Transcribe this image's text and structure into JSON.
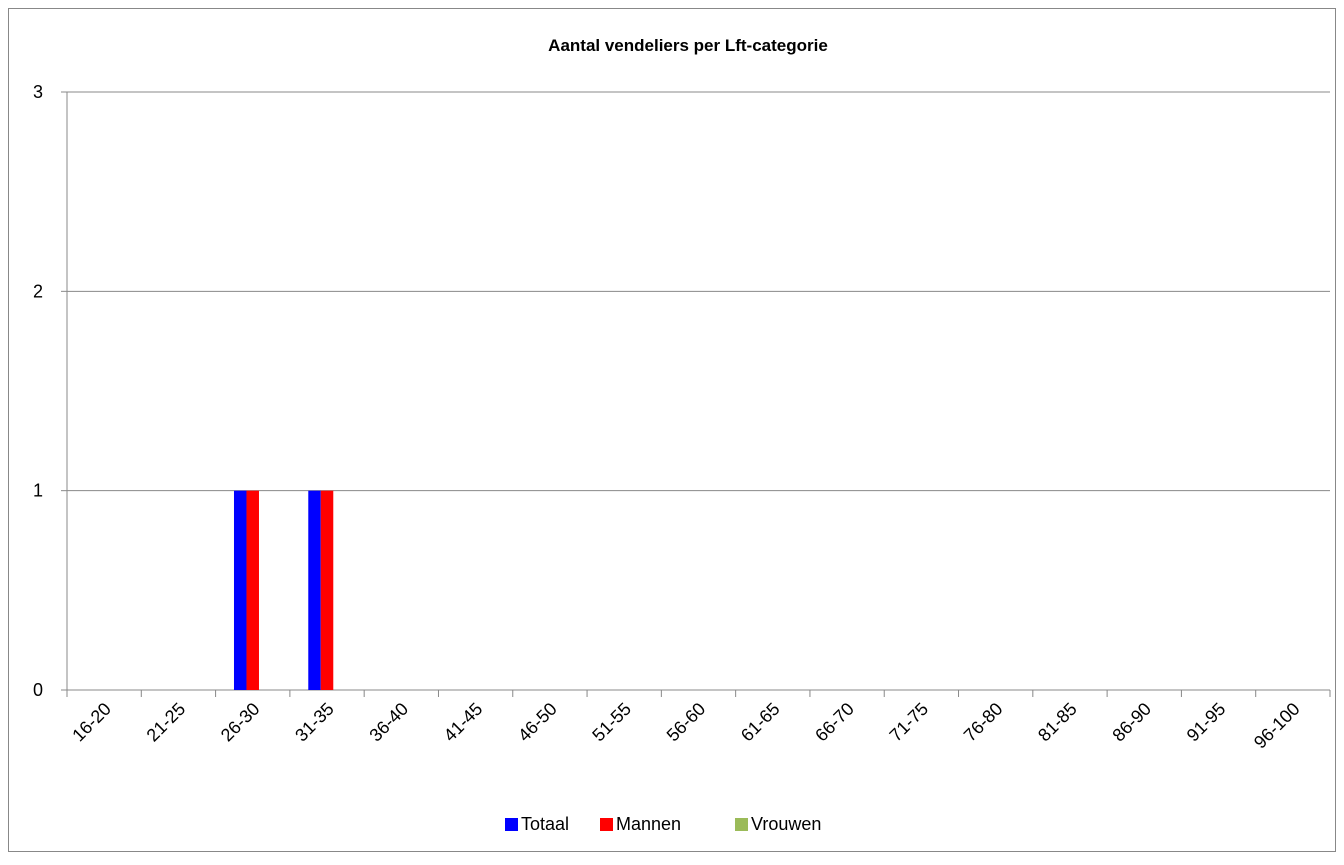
{
  "chart_data": {
    "type": "bar",
    "title": "Aantal vendeliers per Lft-categorie",
    "categories": [
      "16-20",
      "21-25",
      "26-30",
      "31-35",
      "36-40",
      "41-45",
      "46-50",
      "51-55",
      "56-60",
      "61-65",
      "66-70",
      "71-75",
      "76-80",
      "81-85",
      "86-90",
      "91-95",
      "96-100"
    ],
    "series": [
      {
        "name": "Totaal",
        "color": "#0000ff",
        "values": [
          0,
          0,
          1,
          1,
          0,
          0,
          0,
          0,
          0,
          0,
          0,
          0,
          0,
          0,
          0,
          0,
          0
        ]
      },
      {
        "name": "Mannen",
        "color": "#ff0000",
        "values": [
          0,
          0,
          1,
          1,
          0,
          0,
          0,
          0,
          0,
          0,
          0,
          0,
          0,
          0,
          0,
          0,
          0
        ]
      },
      {
        "name": "Vrouwen",
        "color": "#9bbb59",
        "values": [
          0,
          0,
          0,
          0,
          0,
          0,
          0,
          0,
          0,
          0,
          0,
          0,
          0,
          0,
          0,
          0,
          0
        ]
      }
    ],
    "ylim": [
      0,
      3
    ],
    "yticks": [
      0,
      1,
      2,
      3
    ],
    "grid": true,
    "legend": "bottom"
  }
}
